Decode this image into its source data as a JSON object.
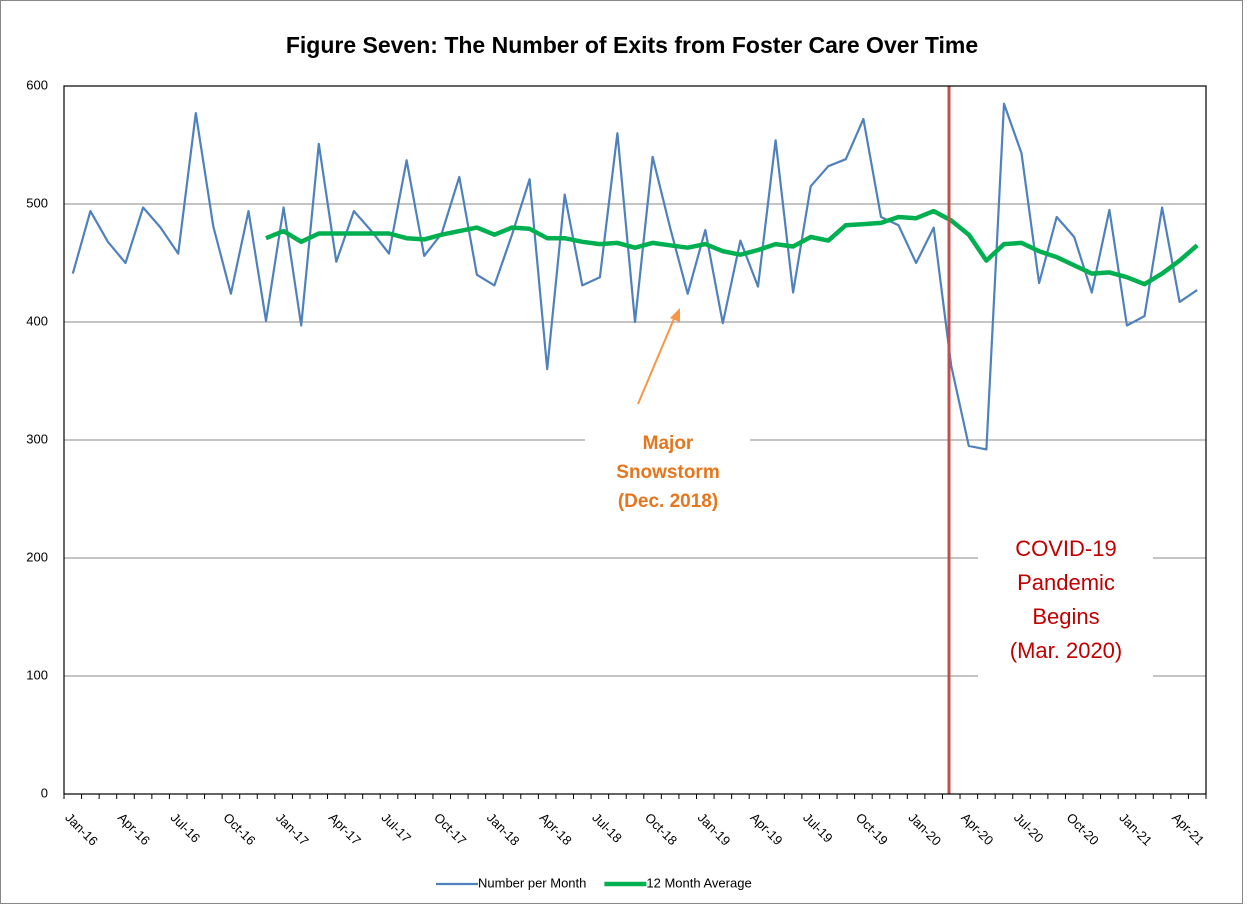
{
  "chart_data": {
    "type": "line",
    "title": "Figure Seven: The Number of Exits from Foster Care Over Time",
    "categories": [
      "Jan-16",
      null,
      null,
      "Apr-16",
      null,
      null,
      "Jul-16",
      null,
      null,
      "Oct-16",
      null,
      null,
      "Jan-17",
      null,
      null,
      "Apr-17",
      null,
      null,
      "Jul-17",
      null,
      null,
      "Oct-17",
      null,
      null,
      "Jan-18",
      null,
      null,
      "Apr-18",
      null,
      null,
      "Jul-18",
      null,
      null,
      "Oct-18",
      null,
      null,
      "Jan-19",
      null,
      null,
      "Apr-19",
      null,
      null,
      "Jul-19",
      null,
      null,
      "Oct-19",
      null,
      null,
      "Jan-20",
      null,
      null,
      "Apr-20",
      null,
      null,
      "Jul-20",
      null,
      null,
      "Oct-20",
      null,
      null,
      "Jan-21",
      null,
      null,
      "Apr-21",
      null
    ],
    "series": [
      {
        "name": "Number per Month",
        "color": "#4f81bd",
        "width": 2.2,
        "values": [
          441,
          494,
          468,
          450,
          497,
          480,
          458,
          577,
          481,
          424,
          494,
          401,
          497,
          397,
          551,
          451,
          494,
          477,
          458,
          537,
          456,
          475,
          523,
          440,
          431,
          474,
          521,
          360,
          508,
          431,
          438,
          560,
          400,
          540,
          480,
          424,
          478,
          399,
          469,
          430,
          554,
          425,
          515,
          532,
          538,
          572,
          489,
          482,
          450,
          480,
          363,
          295,
          292,
          585,
          543,
          433,
          489,
          472,
          425,
          495,
          397,
          405,
          497,
          417,
          427
        ]
      },
      {
        "name": "12 Month Average",
        "color": "#00b050",
        "width": 4.5,
        "values": [
          null,
          null,
          null,
          null,
          null,
          null,
          null,
          null,
          null,
          null,
          null,
          471,
          477,
          468,
          475,
          475,
          475,
          475,
          475,
          471,
          470,
          474,
          477,
          480,
          474,
          480,
          479,
          471,
          471,
          468,
          466,
          467,
          463,
          467,
          465,
          463,
          466,
          460,
          457,
          461,
          466,
          464,
          472,
          469,
          482,
          483,
          484,
          489,
          488,
          494,
          486,
          474,
          452,
          466,
          467,
          460,
          455,
          448,
          441,
          442,
          438,
          432,
          441,
          452,
          465
        ]
      }
    ],
    "ylim": [
      0,
      600
    ],
    "yticks": [
      0,
      100,
      200,
      300,
      400,
      500,
      600
    ],
    "grid": true,
    "legend": "bottom",
    "annotations": [
      {
        "lines": [
          "Major",
          "Snowstorm",
          "(Dec. 2018)"
        ]
      },
      {
        "lines": [
          "COVID-19",
          "Pandemic",
          "Begins",
          "(Mar. 2020)"
        ]
      }
    ]
  }
}
